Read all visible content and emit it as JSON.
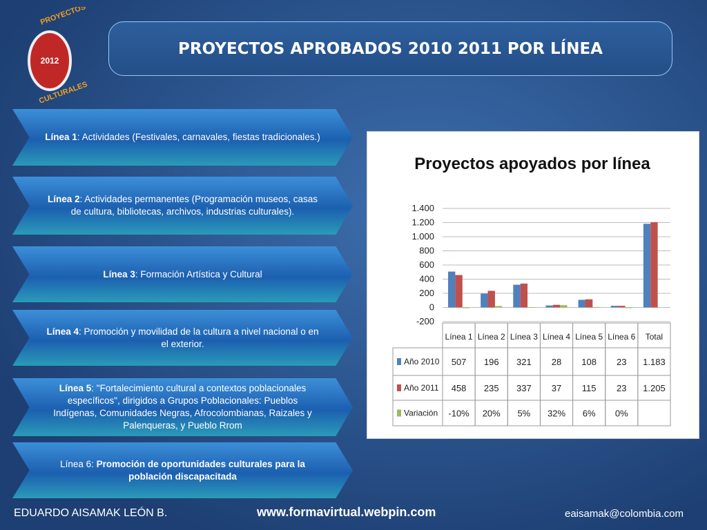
{
  "logo": {
    "top": "PROYECTOS",
    "year": "2012",
    "bottom": "CULTURALES"
  },
  "header": {
    "title": "PROYECTOS APROBADOS 2010 2011 POR LÍNEA"
  },
  "lines": [
    {
      "parts": [
        {
          "b": "Línea 1"
        },
        {
          "t": ": Actividades (Festivales, carnavales, fiestas tradicionales.)"
        }
      ]
    },
    {
      "parts": [
        {
          "b": "Línea 2"
        },
        {
          "t": ": Actividades permanentes (Programación museos, casas de cultura, bibliotecas, archivos, industrias culturales)."
        }
      ]
    },
    {
      "parts": [
        {
          "b": "Línea 3"
        },
        {
          "t": ": Formación Artística y Cultural"
        }
      ]
    },
    {
      "parts": [
        {
          "b": "Línea 4"
        },
        {
          "t": ": Promoción y movilidad de la cultura a nivel nacional o en el exterior."
        }
      ]
    },
    {
      "parts": [
        {
          "b": "Línea 5"
        },
        {
          "t": ": \"Fortalecimiento cultural a contextos poblacionales específicos\", dirigidos a Grupos Poblacionales: Pueblos Indígenas, Comunidades Negras, Afrocolombianas, Raizales y Palenqueras, y Pueblo Rrom"
        }
      ]
    },
    {
      "parts": [
        {
          "t": "Línea 6: "
        },
        {
          "b": "Promoción de oportunidades culturales para la población discapacitada"
        }
      ]
    }
  ],
  "chart_data": {
    "type": "bar",
    "title": "Proyectos apoyados por línea",
    "categories": [
      "Línea 1",
      "Línea 2",
      "Línea 3",
      "Línea 4",
      "Línea 5",
      "Línea 6",
      "Total"
    ],
    "series": [
      {
        "name": "Año 2010",
        "color": "#4f81bd",
        "values": [
          507,
          196,
          321,
          28,
          108,
          23,
          1183
        ],
        "value_labels": [
          "507",
          "196",
          "321",
          "28",
          "108",
          "23",
          "1.183"
        ]
      },
      {
        "name": "Año 2011",
        "color": "#c0504d",
        "values": [
          458,
          235,
          337,
          37,
          115,
          23,
          1205
        ],
        "value_labels": [
          "458",
          "235",
          "337",
          "37",
          "115",
          "23",
          "1.205"
        ]
      },
      {
        "name": "Variación",
        "color": "#9bbb59",
        "values": [
          -10,
          20,
          5,
          32,
          6,
          0,
          null
        ],
        "value_labels": [
          "-10%",
          "20%",
          "5%",
          "32%",
          "6%",
          "0%",
          null
        ]
      }
    ],
    "ylim": [
      -200,
      1400
    ],
    "yticks": [
      -200,
      0,
      200,
      400,
      600,
      800,
      {
        "value": 1000,
        "label": "1.000"
      },
      {
        "value": 1200,
        "label": "1.200"
      },
      {
        "value": 1400,
        "label": "1.400"
      }
    ],
    "grid": true
  },
  "footer": {
    "author": "EDUARDO AISAMAK LEÓN B.",
    "site": "www.formavirtual.webpin.com",
    "email": "eaisamak@colombia.com"
  }
}
